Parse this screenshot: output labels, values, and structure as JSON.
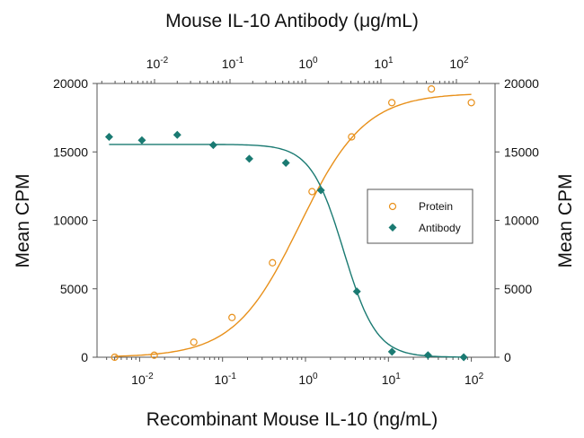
{
  "chart_data": {
    "type": "scatter",
    "title": "Mouse IL-10 Antibody (μg/mL)",
    "xlabel": "Recombinant Mouse IL-10 (ng/mL)",
    "ylabel": "Mean CPM",
    "ylabel_right": "Mean CPM",
    "top_xlabel": "Mouse IL-10 Antibody (μg/mL)",
    "xscale": "log",
    "xlim": [
      0.0035,
      180
    ],
    "top_xlim": [
      0.0018,
      250
    ],
    "ylim": [
      0,
      20000
    ],
    "yticks": [
      0,
      5000,
      10000,
      15000,
      20000
    ],
    "ytick_labels": [
      "0",
      "5000",
      "10000",
      "15000",
      "20000"
    ],
    "xticks": [
      0.01,
      0.1,
      1,
      10,
      100
    ],
    "xtick_labels": [
      {
        "base": "10",
        "exp": "-2"
      },
      {
        "base": "10",
        "exp": "-1"
      },
      {
        "base": "10",
        "exp": "0"
      },
      {
        "base": "10",
        "exp": "1"
      },
      {
        "base": "10",
        "exp": "2"
      }
    ],
    "top_xticks": [
      0.01,
      0.1,
      1,
      10,
      100
    ],
    "top_xtick_labels": [
      {
        "base": "10",
        "exp": "-2"
      },
      {
        "base": "10",
        "exp": "-1"
      },
      {
        "base": "10",
        "exp": "0"
      },
      {
        "base": "10",
        "exp": "1"
      },
      {
        "base": "10",
        "exp": "2"
      }
    ],
    "grid": false,
    "legend_position": "center-right",
    "series": [
      {
        "name": "Protein",
        "axis": "bottom",
        "marker": "open-circle",
        "color": "#E8901A",
        "x": [
          0.005,
          0.015,
          0.045,
          0.13,
          0.4,
          1.2,
          3.6,
          11,
          33,
          100
        ],
        "y": [
          0,
          150,
          1100,
          2900,
          6900,
          12100,
          16100,
          18600,
          19600,
          18600
        ],
        "fit": {
          "type": "4PL",
          "bottom": 0,
          "top": 19300,
          "ec50": 0.85,
          "hill": 1.1
        }
      },
      {
        "name": "Antibody",
        "axis": "top",
        "marker": "filled-diamond",
        "color": "#1A7A72",
        "x": [
          0.0025,
          0.0068,
          0.02,
          0.06,
          0.18,
          0.55,
          1.6,
          4.8,
          14,
          42,
          125
        ],
        "y": [
          16100,
          15850,
          16250,
          15500,
          14500,
          14200,
          12200,
          4800,
          400,
          150,
          0
        ],
        "fit": {
          "type": "4PL",
          "bottom": 0,
          "top": 15550,
          "ec50": 3.2,
          "hill": -2.0
        }
      }
    ]
  }
}
